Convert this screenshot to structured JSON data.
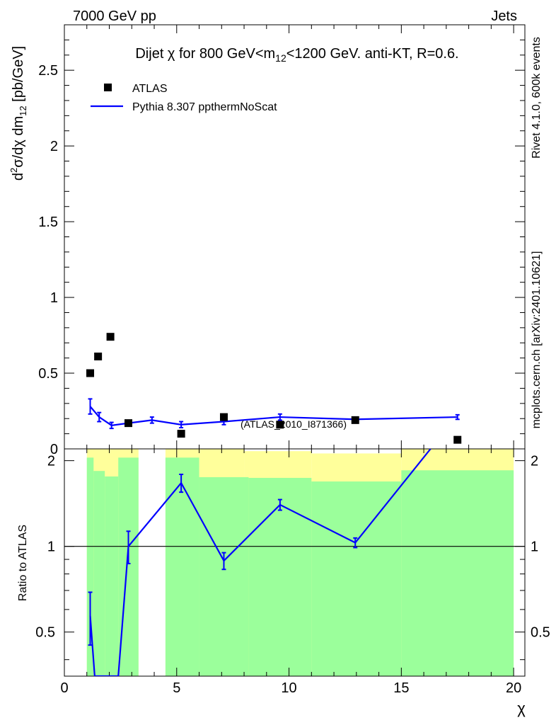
{
  "header": {
    "left": "7000 GeV pp",
    "right": "Jets"
  },
  "side_labels": {
    "rivet": "Rivet 4.1.0,  600k events",
    "mcplots": "mcplots.cern.ch [arXiv:2401.10621]"
  },
  "chart_data": {
    "type": "scatter",
    "title": "Dijet χ for 800 GeV<m12<1200 GeV.  anti-KT, R=0.6.",
    "title_parts": {
      "prefix": "Dijet χ for 800 GeV<m",
      "sub": "12",
      "suffix": "<1200 GeV.  anti-KT, R=0.6."
    },
    "xlabel": "χ",
    "ylabel": "d²σ/dχ dm12 [pb/GeV]",
    "ylabel_parts": {
      "d": "d",
      "sup": "2",
      "mid": "σ/dχ dm",
      "sub": "12",
      "unit": " [pb/GeV]"
    },
    "ratio_ylabel": "Ratio to ATLAS",
    "watermark": "(ATLAS_2010_I871366)",
    "xlim": [
      0,
      20.5
    ],
    "ylim": [
      0,
      2.8
    ],
    "ratio_ylim": [
      0.35,
      2.2
    ],
    "x_ticks": [
      "0",
      "5",
      "10",
      "15",
      "20"
    ],
    "y_ticks": [
      "0",
      "0.5",
      "1",
      "1.5",
      "2",
      "2.5"
    ],
    "ratio_ticks": [
      "0.5",
      "1",
      "2"
    ],
    "legend": [
      {
        "name": "ATLAS",
        "marker": "square",
        "color": "#000000"
      },
      {
        "name": "Pythia 8.307 ppthermNoScat",
        "marker": "line",
        "color": "#0000ff"
      }
    ],
    "series": [
      {
        "name": "ATLAS",
        "x": [
          1.15,
          1.5,
          2.05,
          2.85,
          5.2,
          7.1,
          9.6,
          12.95,
          17.5
        ],
        "y": [
          0.5,
          0.61,
          0.74,
          0.17,
          0.1,
          0.21,
          0.16,
          0.19,
          0.06
        ]
      },
      {
        "name": "Pythia 8.307 ppthermNoScat",
        "x": [
          1.15,
          1.55,
          2.1,
          2.85,
          3.9,
          5.2,
          7.1,
          9.6,
          12.95,
          17.5
        ],
        "y": [
          0.28,
          0.21,
          0.155,
          0.17,
          0.19,
          0.16,
          0.18,
          0.21,
          0.195,
          0.21
        ],
        "err": [
          0.05,
          0.03,
          0.02,
          0.015,
          0.02,
          0.02,
          0.02,
          0.02,
          0.015,
          0.015
        ]
      }
    ],
    "ratio": {
      "x": [
        1.15,
        1.35,
        2.4,
        2.85,
        5.2,
        7.1,
        9.6,
        12.95,
        16.3
      ],
      "y": [
        0.57,
        0.35,
        0.35,
        1.0,
        1.67,
        0.89,
        1.4,
        1.03,
        2.2
      ],
      "err": [
        0.12,
        0,
        0,
        0.13,
        0.12,
        0.06,
        0.06,
        0.04,
        0
      ]
    },
    "bands": {
      "yellow": [
        {
          "x0": 1.0,
          "x1": 3.3,
          "lo": 0.35,
          "hi": 2.2
        },
        {
          "x0": 4.5,
          "x1": 8.0,
          "lo": 0.35,
          "hi": 2.2
        },
        {
          "x0": 8.0,
          "x1": 11.0,
          "lo": 0.35,
          "hi": 2.16
        },
        {
          "x0": 11.0,
          "x1": 15.0,
          "lo": 0.35,
          "hi": 2.12
        },
        {
          "x0": 15.0,
          "x1": 20.0,
          "lo": 0.35,
          "hi": 2.2
        }
      ],
      "green": [
        {
          "x0": 1.0,
          "x1": 1.3,
          "lo": 0.35,
          "hi": 2.05
        },
        {
          "x0": 1.3,
          "x1": 1.8,
          "lo": 0.35,
          "hi": 1.84
        },
        {
          "x0": 1.8,
          "x1": 2.4,
          "lo": 0.35,
          "hi": 1.76
        },
        {
          "x0": 2.4,
          "x1": 3.3,
          "lo": 0.35,
          "hi": 2.05
        },
        {
          "x0": 4.5,
          "x1": 6.0,
          "lo": 0.35,
          "hi": 2.05
        },
        {
          "x0": 6.0,
          "x1": 8.2,
          "lo": 0.35,
          "hi": 1.75
        },
        {
          "x0": 8.2,
          "x1": 11.0,
          "lo": 0.35,
          "hi": 1.74
        },
        {
          "x0": 11.0,
          "x1": 15.0,
          "lo": 0.35,
          "hi": 1.69
        },
        {
          "x0": 15.0,
          "x1": 20.0,
          "lo": 0.35,
          "hi": 1.85
        }
      ]
    },
    "colors": {
      "data": "#000000",
      "mc": "#0000ff",
      "band_inner": "#9bff9b",
      "band_outer": "#ffff9b",
      "watermark": "#888888",
      "side_text": "#888888"
    }
  }
}
